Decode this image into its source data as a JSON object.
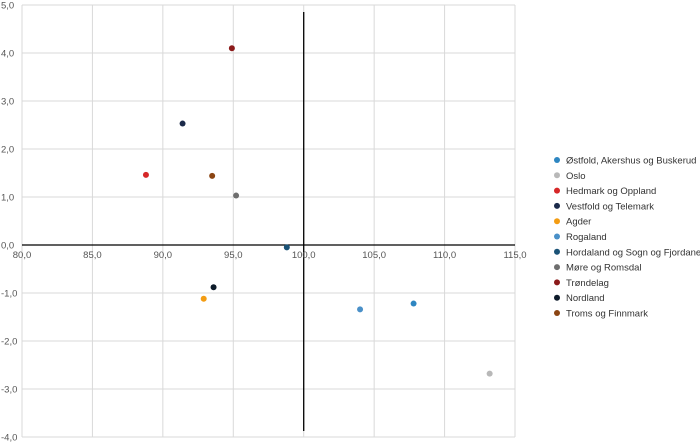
{
  "chart_data": {
    "type": "scatter",
    "xlim": [
      80,
      115
    ],
    "ylim": [
      -4,
      5
    ],
    "x_ticks": [
      80,
      85,
      90,
      95,
      100,
      105,
      110,
      115
    ],
    "y_ticks": [
      -4,
      -3,
      -2,
      -1,
      0,
      1,
      2,
      3,
      4,
      5
    ],
    "x_tick_labels": [
      "80,0",
      "85,0",
      "90,0",
      "95,0",
      "100,0",
      "105,0",
      "110,0",
      "115,0"
    ],
    "y_tick_labels": [
      "-4,0",
      "-3,0",
      "-2,0",
      "-1,0",
      "0,0",
      "1,0",
      "2,0",
      "3,0",
      "4,0",
      "5,0"
    ],
    "grid": true,
    "legend_position": "right",
    "series": [
      {
        "name": "Østfold, Akershus og Buskerud",
        "color": "#2e86c1",
        "x": 107.8,
        "y": -1.22
      },
      {
        "name": "Oslo",
        "color": "#b8b8b8",
        "x": 113.2,
        "y": -2.68
      },
      {
        "name": "Hedmark og Oppland",
        "color": "#d62728",
        "x": 88.8,
        "y": 1.46
      },
      {
        "name": "Vestfold og Telemark",
        "color": "#1b2a4a",
        "x": 91.4,
        "y": 2.53
      },
      {
        "name": "Agder",
        "color": "#f39c12",
        "x": 92.9,
        "y": -1.12
      },
      {
        "name": "Rogaland",
        "color": "#4a90c8",
        "x": 104.0,
        "y": -1.34
      },
      {
        "name": "Hordaland og Sogn og Fjordane",
        "color": "#1a5276",
        "x": 98.8,
        "y": -0.05
      },
      {
        "name": "Møre og Romsdal",
        "color": "#6e6e6e",
        "x": 95.2,
        "y": 1.03
      },
      {
        "name": "Trøndelag",
        "color": "#8b1a1a",
        "x": 94.9,
        "y": 4.1
      },
      {
        "name": "Nordland",
        "color": "#0d1b2a",
        "x": 93.6,
        "y": -0.88
      },
      {
        "name": "Troms og Finnmark",
        "color": "#8b4513",
        "x": 93.5,
        "y": 1.44
      }
    ]
  }
}
